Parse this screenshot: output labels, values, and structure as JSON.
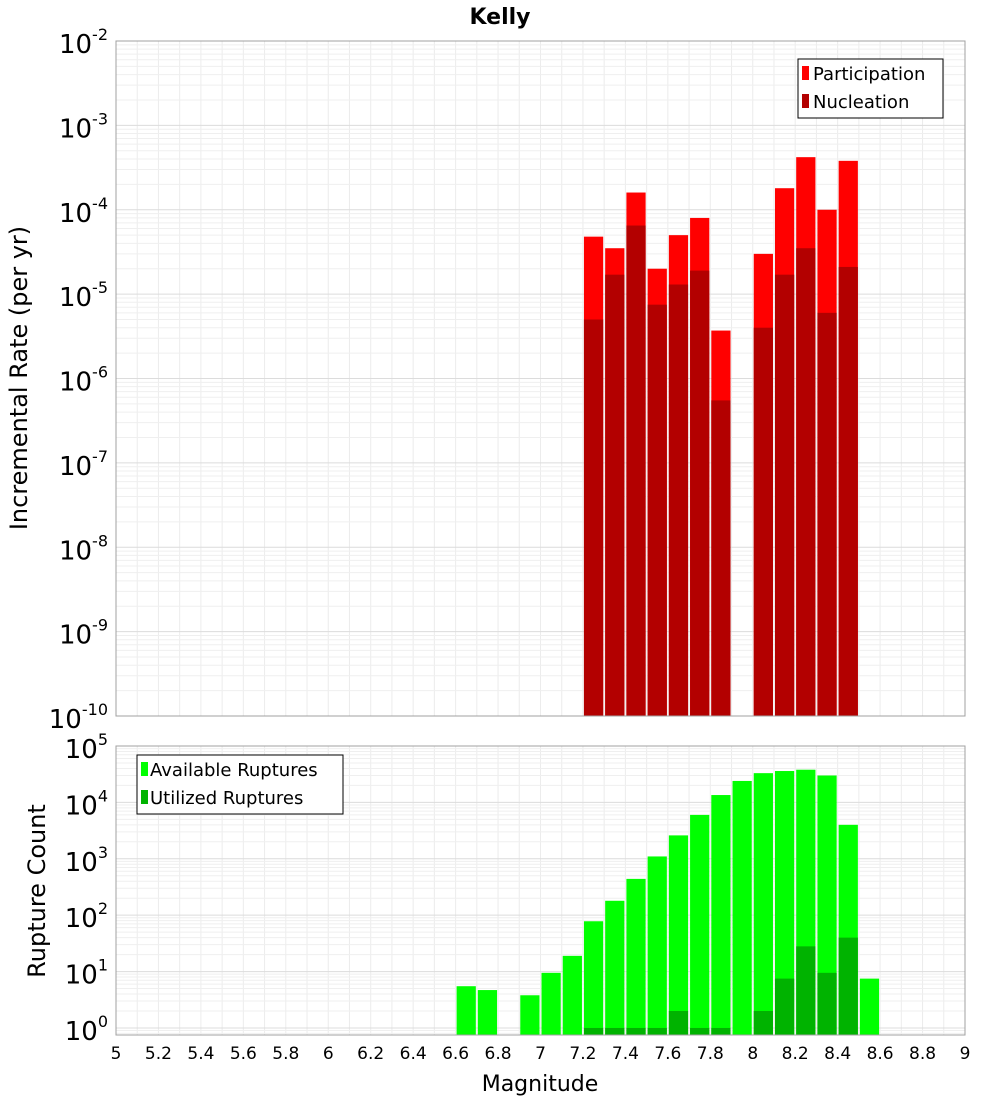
{
  "chart_data": [
    {
      "type": "bar",
      "title": "Kelly",
      "ylabel": "Incremental Rate (per yr)",
      "xlabel": "",
      "yscale": "log",
      "ylim": [
        1e-10,
        0.01
      ],
      "xlim": [
        5,
        9
      ],
      "grid": true,
      "legend_position": "top-right",
      "y_ticks": [
        {
          "base": "10",
          "exp": "-10"
        },
        {
          "base": "10",
          "exp": "-9"
        },
        {
          "base": "10",
          "exp": "-8"
        },
        {
          "base": "10",
          "exp": "-7"
        },
        {
          "base": "10",
          "exp": "-6"
        },
        {
          "base": "10",
          "exp": "-5"
        },
        {
          "base": "10",
          "exp": "-4"
        },
        {
          "base": "10",
          "exp": "-3"
        },
        {
          "base": "10",
          "exp": "-2"
        }
      ],
      "x": [
        7.25,
        7.35,
        7.45,
        7.55,
        7.65,
        7.75,
        7.85,
        8.05,
        8.15,
        8.25,
        8.35,
        8.45
      ],
      "bar_width": 0.1,
      "series": [
        {
          "name": "Participation",
          "color": "#ff0000",
          "values": [
            4.8e-05,
            3.5e-05,
            0.00016,
            2e-05,
            5e-05,
            8e-05,
            3.7e-06,
            3e-05,
            0.00018,
            0.00042,
            0.0001,
            0.00038
          ]
        },
        {
          "name": "Nucleation",
          "color": "#b30000",
          "values": [
            5e-06,
            1.7e-05,
            6.5e-05,
            7.5e-06,
            1.3e-05,
            1.9e-05,
            5.5e-07,
            4e-06,
            1.7e-05,
            3.5e-05,
            6e-06,
            2.1e-05
          ]
        }
      ]
    },
    {
      "type": "bar",
      "title": "",
      "ylabel": "Rupture Count",
      "xlabel": "Magnitude",
      "yscale": "log",
      "ylim": [
        0.75,
        100000
      ],
      "xlim": [
        5,
        9
      ],
      "grid": true,
      "legend_position": "top-left",
      "y_ticks": [
        {
          "base": "10",
          "exp": "0"
        },
        {
          "base": "10",
          "exp": "1"
        },
        {
          "base": "10",
          "exp": "2"
        },
        {
          "base": "10",
          "exp": "3"
        },
        {
          "base": "10",
          "exp": "4"
        },
        {
          "base": "10",
          "exp": "5"
        }
      ],
      "x_tick_labels": [
        "5",
        "5.2",
        "5.4",
        "5.6",
        "5.8",
        "6",
        "6.2",
        "6.4",
        "6.6",
        "6.8",
        "7",
        "7.2",
        "7.4",
        "7.6",
        "7.8",
        "8",
        "8.2",
        "8.4",
        "8.6",
        "8.8",
        "9"
      ],
      "x": [
        6.65,
        6.75,
        6.95,
        7.05,
        7.15,
        7.25,
        7.35,
        7.45,
        7.55,
        7.65,
        7.75,
        7.85,
        7.95,
        8.05,
        8.15,
        8.25,
        8.35,
        8.45,
        8.55
      ],
      "bar_width": 0.1,
      "series": [
        {
          "name": "Available Ruptures",
          "color": "#00ff00",
          "values": [
            5.5,
            4.7,
            3.8,
            9.5,
            19,
            78,
            180,
            440,
            1100,
            2600,
            6000,
            13500,
            24000,
            33000,
            36000,
            38000,
            30000,
            4000,
            7.5
          ]
        },
        {
          "name": "Utilized Ruptures",
          "color": "#00b300",
          "values": [
            null,
            null,
            null,
            null,
            null,
            1,
            1,
            1,
            1,
            2,
            1,
            1,
            null,
            2,
            7.5,
            28,
            9.5,
            40,
            null
          ]
        }
      ]
    }
  ]
}
